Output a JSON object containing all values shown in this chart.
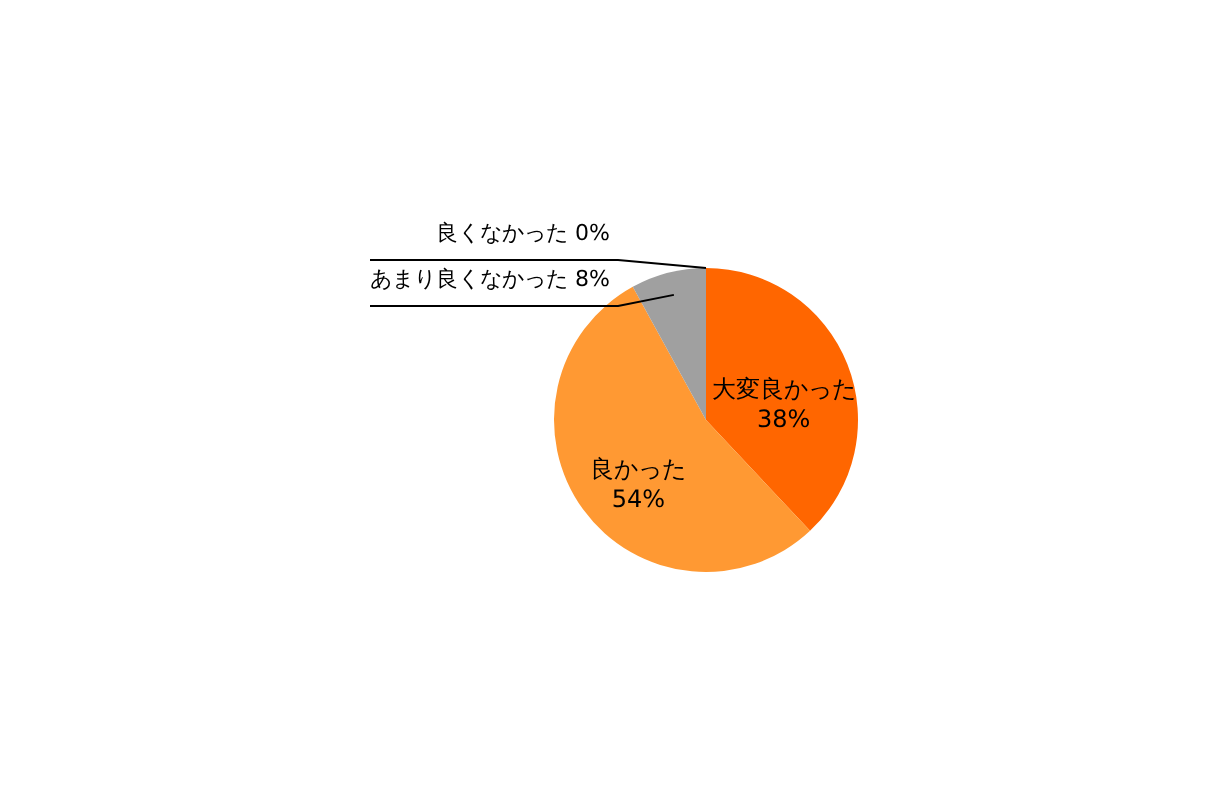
{
  "chart_data": {
    "type": "pie",
    "categories": [
      "大変良かった",
      "良かった",
      "あまり良くなかった",
      "良くなかった"
    ],
    "values": [
      38,
      54,
      8,
      0
    ],
    "value_labels": [
      "38%",
      "54%",
      "8%",
      "0%"
    ],
    "colors": [
      "#ff6600",
      "#ff9933",
      "#a0a0a0",
      "#d0d0d0"
    ]
  }
}
